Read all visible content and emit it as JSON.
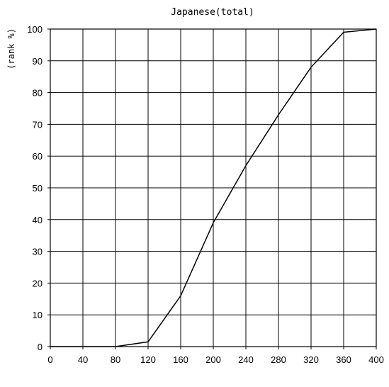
{
  "chart_data": {
    "type": "line",
    "title": "Japanese(total)",
    "xlabel": "",
    "ylabel": "(rank %)",
    "xlim": [
      0,
      400
    ],
    "ylim": [
      0,
      100
    ],
    "xticks": [
      0,
      40,
      80,
      120,
      160,
      200,
      240,
      280,
      320,
      360,
      400
    ],
    "yticks": [
      0,
      10,
      20,
      30,
      40,
      50,
      60,
      70,
      80,
      90,
      100
    ],
    "grid": true,
    "legend": "none",
    "series": [
      {
        "color": "#000000",
        "x": [
          0,
          40,
          80,
          120,
          160,
          200,
          240,
          280,
          320,
          360,
          400
        ],
        "y": [
          0,
          0,
          0,
          1.5,
          16,
          39,
          57,
          73,
          88,
          99,
          100
        ]
      }
    ]
  }
}
